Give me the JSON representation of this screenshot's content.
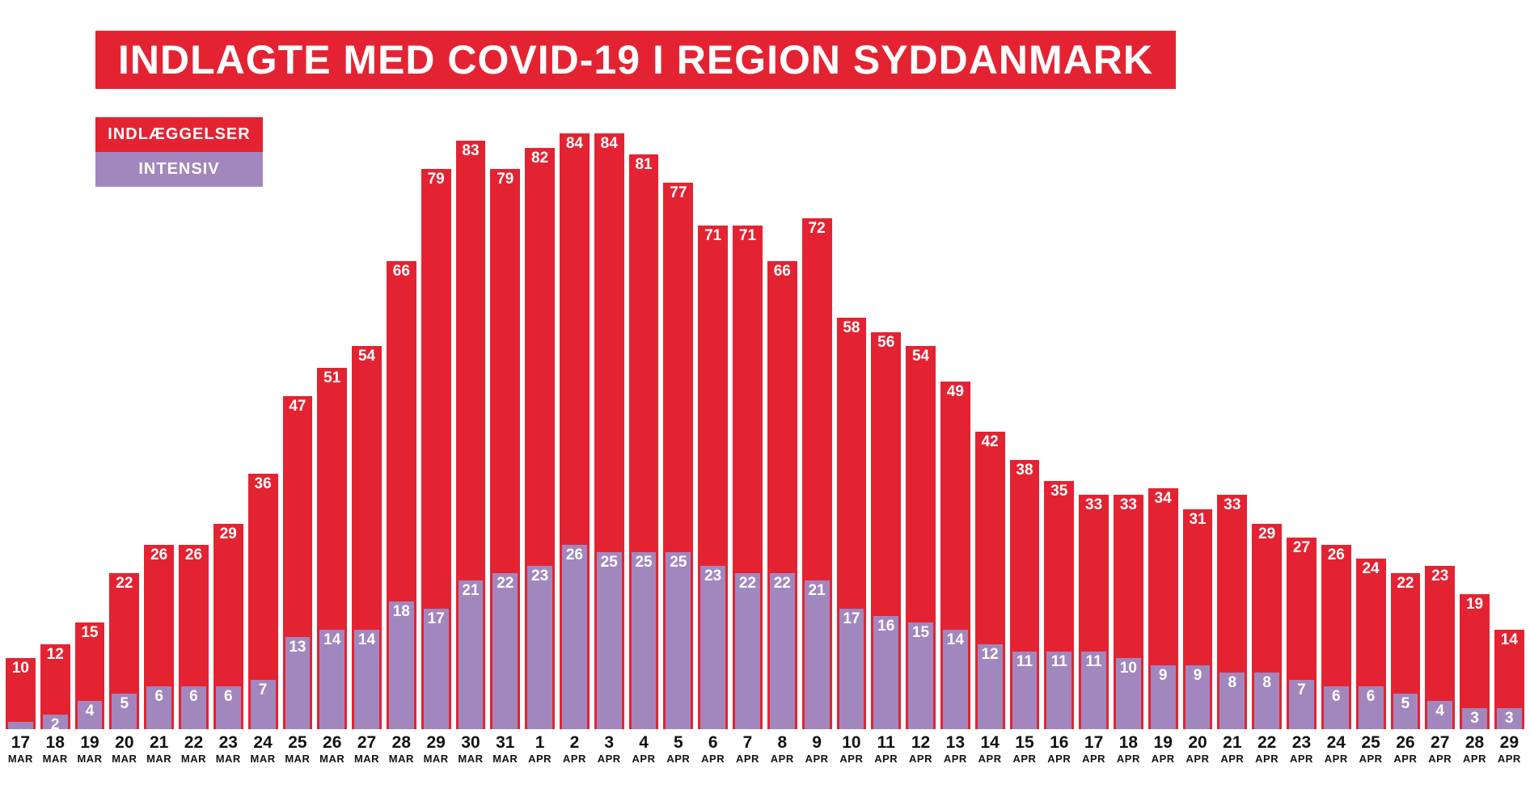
{
  "page": {
    "background": "#ffffff"
  },
  "header": {
    "title": "INDLAGTE MED COVID-19 I REGION SYDDANMARK",
    "bg_color": "#e42332",
    "text_color": "#ffffff"
  },
  "chart_data": {
    "type": "bar",
    "layout": "overlaid",
    "title": "INDLAGTE MED COVID-19 I REGION SYDDANMARK",
    "legend_position": "top-left",
    "grid": false,
    "ylim": [
      0,
      84
    ],
    "value_label_style": "white bold, inside top of bar",
    "categories": [
      "17 MAR",
      "18 MAR",
      "19 MAR",
      "20 MAR",
      "21 MAR",
      "22 MAR",
      "23 MAR",
      "24 MAR",
      "25 MAR",
      "26 MAR",
      "27 MAR",
      "28 MAR",
      "29 MAR",
      "30 MAR",
      "31 MAR",
      "1 APR",
      "2 APR",
      "3 APR",
      "4 APR",
      "5 APR",
      "6 APR",
      "7 APR",
      "8 APR",
      "9 APR",
      "10 APR",
      "11 APR",
      "12 APR",
      "13 APR",
      "14 APR",
      "15 APR",
      "16 APR",
      "17 APR",
      "18 APR",
      "19 APR",
      "20 APR",
      "21 APR",
      "22 APR",
      "23 APR",
      "24 APR",
      "25 APR",
      "26 APR",
      "27 APR",
      "28 APR",
      "29 APR"
    ],
    "series": [
      {
        "name": "INDLÆGGELSER",
        "color": "#e42332",
        "values": [
          10,
          12,
          15,
          22,
          26,
          26,
          29,
          36,
          47,
          51,
          54,
          66,
          79,
          83,
          79,
          82,
          84,
          84,
          81,
          77,
          71,
          71,
          66,
          72,
          58,
          56,
          54,
          49,
          42,
          38,
          35,
          33,
          33,
          34,
          31,
          33,
          29,
          27,
          26,
          24,
          22,
          23,
          19,
          14
        ]
      },
      {
        "name": "INTENSIV",
        "color": "#a287be",
        "values": [
          1,
          2,
          4,
          5,
          6,
          6,
          6,
          7,
          13,
          14,
          14,
          18,
          17,
          21,
          22,
          23,
          26,
          25,
          25,
          25,
          23,
          22,
          22,
          21,
          17,
          16,
          15,
          14,
          12,
          11,
          11,
          11,
          10,
          9,
          9,
          8,
          8,
          7,
          6,
          6,
          5,
          4,
          3,
          3
        ],
        "unlabeled_indices": [
          0
        ]
      }
    ],
    "date_label_colors": "#121212"
  }
}
